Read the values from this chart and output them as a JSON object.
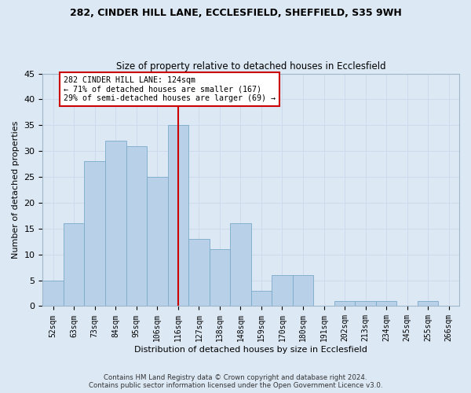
{
  "title1": "282, CINDER HILL LANE, ECCLESFIELD, SHEFFIELD, S35 9WH",
  "title2": "Size of property relative to detached houses in Ecclesfield",
  "xlabel": "Distribution of detached houses by size in Ecclesfield",
  "ylabel": "Number of detached properties",
  "bins": [
    "52sqm",
    "63sqm",
    "73sqm",
    "84sqm",
    "95sqm",
    "106sqm",
    "116sqm",
    "127sqm",
    "138sqm",
    "148sqm",
    "159sqm",
    "170sqm",
    "180sqm",
    "191sqm",
    "202sqm",
    "213sqm",
    "234sqm",
    "245sqm",
    "255sqm",
    "266sqm"
  ],
  "values": [
    5,
    16,
    28,
    32,
    31,
    25,
    35,
    13,
    11,
    16,
    3,
    6,
    6,
    0,
    1,
    1,
    1,
    0,
    1,
    0
  ],
  "bar_color": "#b8d0e8",
  "bar_edgecolor": "#7aaaca",
  "vline_index": 6.5,
  "annotation_text": "282 CINDER HILL LANE: 124sqm\n← 71% of detached houses are smaller (167)\n29% of semi-detached houses are larger (69) →",
  "annotation_box_color": "#ffffff",
  "annotation_box_edgecolor": "#cc0000",
  "vline_color": "#cc0000",
  "grid_color": "#ccdaeb",
  "background_color": "#dce8f4",
  "fig_background_color": "#dce8f4",
  "footer1": "Contains HM Land Registry data © Crown copyright and database right 2024.",
  "footer2": "Contains public sector information licensed under the Open Government Licence v3.0.",
  "ylim": [
    0,
    45
  ],
  "yticks": [
    0,
    5,
    10,
    15,
    20,
    25,
    30,
    35,
    40,
    45
  ]
}
